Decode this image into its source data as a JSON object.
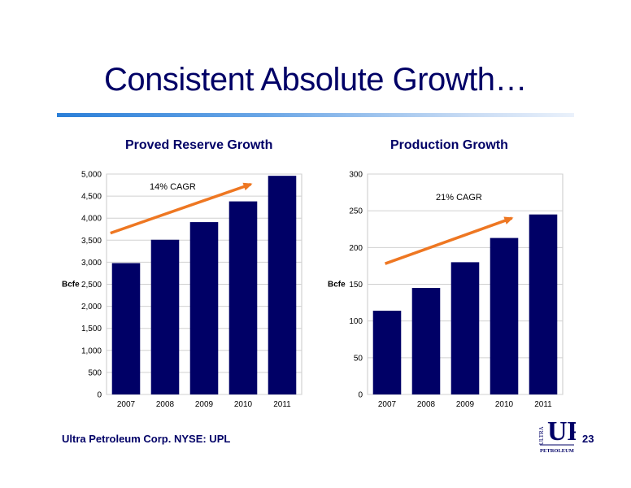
{
  "slide": {
    "title": "Consistent Absolute Growth…",
    "footer": "Ultra Petroleum Corp. NYSE: UPL",
    "page_number": "23",
    "accent_color": "#000066",
    "logo": {
      "top_text": "ULTRA",
      "mark": "UP",
      "bottom_text": "PETROLEUM"
    }
  },
  "chart_data": [
    {
      "type": "bar",
      "title": "Proved Reserve Growth",
      "ylabel": "Bcfe",
      "categories": [
        "2007",
        "2008",
        "2009",
        "2010",
        "2011"
      ],
      "values": [
        2980,
        3510,
        3910,
        4380,
        4960
      ],
      "ylim": [
        0,
        5000
      ],
      "yticks": [
        0,
        500,
        1000,
        1500,
        2000,
        2500,
        3000,
        3500,
        4000,
        4500,
        5000
      ],
      "ytick_labels": [
        "0",
        "500",
        "1,000",
        "1,500",
        "2,000",
        "2,500",
        "3,000",
        "3,500",
        "4,000",
        "4,500",
        "5,000"
      ],
      "annotation": "14% CAGR",
      "trend_arrow": {
        "from": [
          2006.6,
          3660
        ],
        "to": [
          2010.2,
          4770
        ],
        "color": "#ee7722"
      },
      "bar_color": "#000066",
      "grid": true
    },
    {
      "type": "bar",
      "title": "Production Growth",
      "ylabel": "Bcfe",
      "categories": [
        "2007",
        "2008",
        "2009",
        "2010",
        "2011"
      ],
      "values": [
        114,
        145,
        180,
        213,
        245
      ],
      "ylim": [
        0,
        300
      ],
      "yticks": [
        0,
        50,
        100,
        150,
        200,
        250,
        300
      ],
      "ytick_labels": [
        "0",
        "50",
        "100",
        "150",
        "200",
        "250",
        "300"
      ],
      "annotation": "21% CAGR",
      "trend_arrow": {
        "from": [
          2006.95,
          178
        ],
        "to": [
          2010.2,
          240
        ],
        "color": "#ee7722"
      },
      "bar_color": "#000066",
      "grid": true
    }
  ]
}
